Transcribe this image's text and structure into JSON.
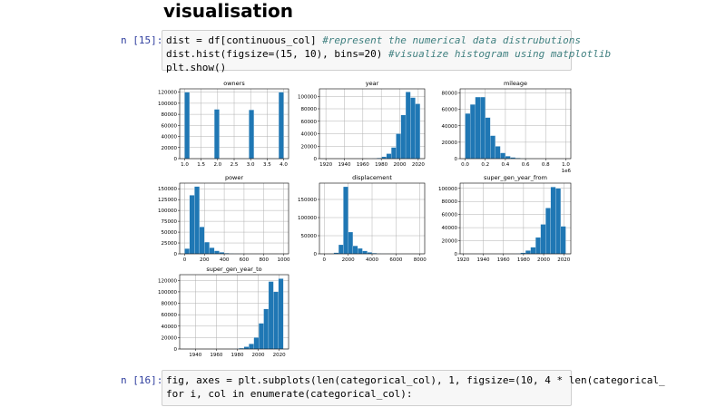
{
  "heading": "visualisation",
  "cells": [
    {
      "prompt": "n [15]:",
      "lines": [
        {
          "code": "dist = df[continuous_col] ",
          "comment": "#represent the numerical data distrubutions"
        },
        {
          "code": "dist.hist(figsize=(15, 10), bins=20) ",
          "comment": "#visualize histogram using matplotlib"
        },
        {
          "code": "plt.show()"
        }
      ]
    },
    {
      "prompt": "n [16]:",
      "lines": [
        {
          "code": "fig, axes = plt.subplots(len(categorical_col), 1, figsize=(10, 4 * len(categorical_"
        },
        {
          "code": "for i, col in enumerate(categorical_col):"
        }
      ]
    }
  ],
  "chart_data": [
    {
      "type": "histogram",
      "title": "owners",
      "color": "#1f77b4",
      "grid": true,
      "bins": [
        1,
        1.15,
        1.3,
        1.45,
        1.6,
        1.75,
        1.9,
        2.05,
        2.2,
        2.35,
        2.5,
        2.65,
        2.8,
        2.95,
        3.1,
        3.25,
        3.4,
        3.55,
        3.7,
        3.85,
        4
      ],
      "values": [
        120000,
        0,
        0,
        0,
        0,
        0,
        89000,
        0,
        0,
        0,
        0,
        0,
        0,
        88000,
        0,
        0,
        0,
        0,
        0,
        120000
      ],
      "xlim": [
        0.85,
        4.15
      ],
      "xticks": [
        {
          "value": 1,
          "label": "1.0"
        },
        1.5,
        {
          "value": 2,
          "label": "2.0"
        },
        2.5,
        {
          "value": 3,
          "label": "3.0"
        },
        3.5,
        {
          "value": 4,
          "label": "4.0"
        }
      ],
      "ylim": [
        0,
        126000
      ],
      "yticks": [
        0,
        20000,
        40000,
        60000,
        80000,
        100000,
        120000
      ]
    },
    {
      "type": "histogram",
      "title": "year",
      "color": "#1f77b4",
      "grid": true,
      "bins": [
        1918,
        1923.2,
        1928.4,
        1933.6,
        1938.8,
        1944,
        1949.2,
        1954.4,
        1959.6,
        1964.8,
        1970,
        1975.2,
        1980.4,
        1985.6,
        1990.8,
        1996,
        2001.2,
        2006.4,
        2011.6,
        2016.8,
        2022
      ],
      "values": [
        0,
        0,
        0,
        0,
        0,
        0,
        0,
        0,
        0,
        200,
        500,
        1000,
        3000,
        8000,
        18000,
        40000,
        70000,
        107000,
        98000,
        88000
      ],
      "xlim": [
        1913,
        2027
      ],
      "xticks": [
        1920,
        1940,
        1960,
        1980,
        2000,
        2020
      ],
      "ylim": [
        0,
        112000
      ],
      "yticks": [
        0,
        20000,
        40000,
        60000,
        80000,
        100000
      ]
    },
    {
      "type": "histogram",
      "title": "mileage",
      "color": "#1f77b4",
      "grid": true,
      "x_offset_label": "1e6",
      "bins": [
        0,
        0.05,
        0.1,
        0.15,
        0.2,
        0.25,
        0.3,
        0.35,
        0.4,
        0.45,
        0.5,
        0.55,
        0.6,
        0.65,
        0.7,
        0.75,
        0.8,
        0.85,
        0.9,
        0.95,
        1
      ],
      "values": [
        55000,
        66000,
        75000,
        75000,
        50000,
        28000,
        15000,
        7000,
        3000,
        1500,
        700,
        300,
        100,
        50,
        20,
        10,
        5,
        2,
        1,
        1
      ],
      "xlim": [
        -0.05,
        1.05
      ],
      "xticks": [
        {
          "value": 0,
          "label": "0.0"
        },
        0.2,
        0.4,
        0.6,
        0.8,
        {
          "value": 1,
          "label": "1.0"
        }
      ],
      "ylim": [
        0,
        85000
      ],
      "yticks": [
        0,
        20000,
        40000,
        60000,
        80000
      ]
    },
    {
      "type": "histogram",
      "title": "power",
      "color": "#1f77b4",
      "grid": true,
      "bins": [
        0,
        50,
        100,
        150,
        200,
        250,
        300,
        350,
        400,
        450,
        500,
        550,
        600,
        650,
        700,
        750,
        800,
        850,
        900,
        950,
        1000
      ],
      "values": [
        12000,
        135000,
        155000,
        62000,
        27000,
        14000,
        7000,
        3500,
        1500,
        800,
        400,
        200,
        100,
        50,
        20,
        10,
        5,
        0,
        0,
        2
      ],
      "xlim": [
        -50,
        1050
      ],
      "xticks": [
        0,
        200,
        400,
        600,
        800,
        1000
      ],
      "ylim": [
        0,
        163000
      ],
      "yticks": [
        0,
        25000,
        50000,
        75000,
        100000,
        125000,
        150000
      ]
    },
    {
      "type": "histogram",
      "title": "displacement",
      "color": "#1f77b4",
      "grid": true,
      "bins": [
        0,
        400,
        800,
        1200,
        1600,
        2000,
        2400,
        2800,
        3200,
        3600,
        4000,
        4400,
        4800,
        5200,
        5600,
        6000,
        6400,
        6800,
        7200,
        7600,
        8000
      ],
      "values": [
        0,
        0,
        3000,
        25000,
        185000,
        60000,
        22000,
        15000,
        8000,
        4000,
        2000,
        1000,
        500,
        200,
        100,
        50,
        20,
        10,
        5,
        2
      ],
      "xlim": [
        -400,
        8400
      ],
      "xticks": [
        0,
        2000,
        4000,
        6000,
        8000
      ],
      "ylim": [
        0,
        195000
      ],
      "yticks": [
        0,
        50000,
        100000,
        150000
      ]
    },
    {
      "type": "histogram",
      "title": "super_gen_year_from",
      "color": "#1f77b4",
      "grid": true,
      "bins": [
        1922,
        1927,
        1932,
        1937,
        1942,
        1947,
        1952,
        1957,
        1962,
        1967,
        1972,
        1977,
        1982,
        1987,
        1992,
        1997,
        2002,
        2007,
        2012,
        2017,
        2022
      ],
      "values": [
        0,
        0,
        0,
        0,
        0,
        0,
        0,
        0,
        0,
        0,
        500,
        1500,
        5000,
        10000,
        25000,
        45000,
        70000,
        102000,
        100000,
        42000
      ],
      "xlim": [
        1917,
        2027
      ],
      "xticks": [
        1920,
        1940,
        1960,
        1980,
        2000,
        2020
      ],
      "ylim": [
        0,
        108000
      ],
      "yticks": [
        0,
        20000,
        40000,
        60000,
        80000,
        100000
      ]
    },
    {
      "type": "histogram",
      "title": "super_gen_year_to",
      "color": "#1f77b4",
      "grid": true,
      "bins": [
        1930,
        1934.7,
        1939.4,
        1944.1,
        1948.8,
        1953.5,
        1958.2,
        1962.9,
        1967.6,
        1972.3,
        1977,
        1981.7,
        1986.4,
        1991.1,
        1995.8,
        2000.5,
        2005.2,
        2009.9,
        2014.6,
        2019.3,
        2024
      ],
      "values": [
        0,
        0,
        0,
        0,
        0,
        0,
        0,
        0,
        0,
        0,
        500,
        1500,
        4000,
        9000,
        20000,
        45000,
        70000,
        118000,
        100000,
        123000
      ],
      "xlim": [
        1925,
        2029
      ],
      "xticks": [
        1940,
        1960,
        1980,
        2000,
        2020
      ],
      "ylim": [
        0,
        130000
      ],
      "yticks": [
        0,
        20000,
        40000,
        60000,
        80000,
        100000,
        120000
      ]
    }
  ]
}
